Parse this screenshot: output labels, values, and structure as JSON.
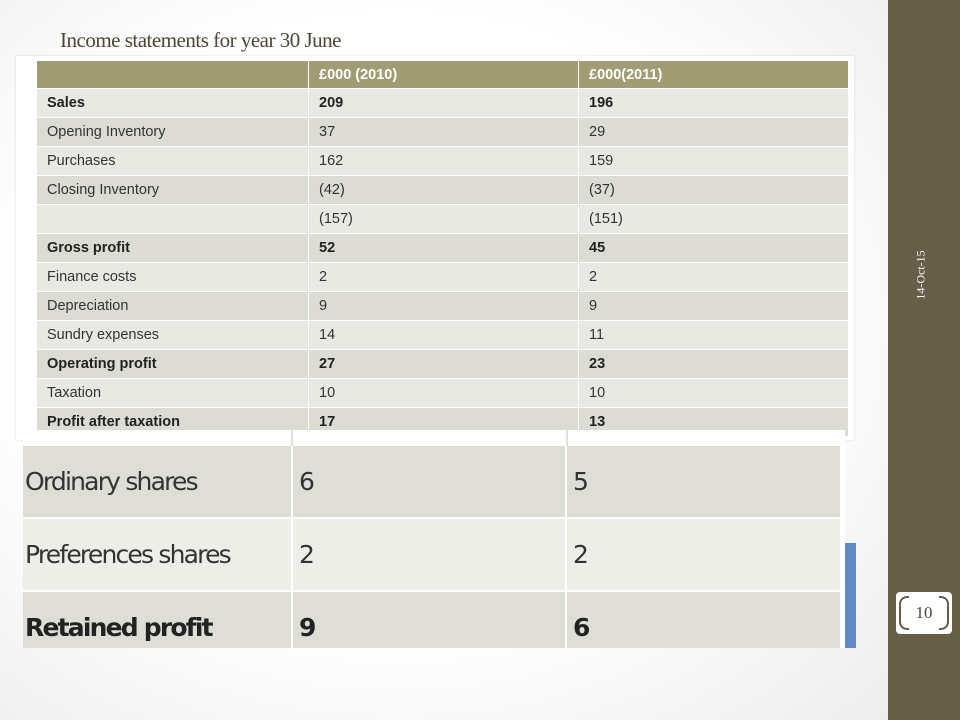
{
  "slide": {
    "title": "Income statements for year 30 June",
    "date": "14-Oct-15",
    "page_number": "10",
    "accent_colors": {
      "sidebar": "#675e47",
      "table_header": "#a29c75",
      "table_row": "#e9e9e3",
      "blue_strip": "#5f89c1"
    }
  },
  "income_table": {
    "headers": [
      "",
      "£000 (2010)",
      "£000(2011)"
    ],
    "rows": [
      {
        "label": "Sales",
        "y2010": "209",
        "y2011": "196",
        "bold": true
      },
      {
        "label": "Opening Inventory",
        "y2010": "37",
        "y2011": "29",
        "bold": false
      },
      {
        "label": "Purchases",
        "y2010": "162",
        "y2011": "159",
        "bold": false
      },
      {
        "label": "Closing Inventory",
        "y2010": "(42)",
        "y2011": "(37)",
        "bold": false
      },
      {
        "label": "",
        "y2010": "(157)",
        "y2011": "(151)",
        "bold": false
      },
      {
        "label": "Gross profit",
        "y2010": "52",
        "y2011": "45",
        "bold": true
      },
      {
        "label": "Finance costs",
        "y2010": "2",
        "y2011": "2",
        "bold": false
      },
      {
        "label": "Depreciation",
        "y2010": "9",
        "y2011": "9",
        "bold": false
      },
      {
        "label": "Sundry expenses",
        "y2010": "14",
        "y2011": "11",
        "bold": false
      },
      {
        "label": "Operating profit",
        "y2010": "27",
        "y2011": "23",
        "bold": true
      },
      {
        "label": "Taxation",
        "y2010": "10",
        "y2011": "10",
        "bold": false
      },
      {
        "label": "Profit after taxation",
        "y2010": "17",
        "y2011": "13",
        "bold": true
      }
    ]
  },
  "appropriation_table": {
    "rows": [
      {
        "label": "Ordinary shares",
        "y2010": "6",
        "y2011": "5",
        "bold": false
      },
      {
        "label": "Preferences shares",
        "y2010": "2",
        "y2011": "2",
        "bold": false
      },
      {
        "label": "Retained profit",
        "y2010": "9",
        "y2011": "6",
        "bold": true
      }
    ]
  }
}
